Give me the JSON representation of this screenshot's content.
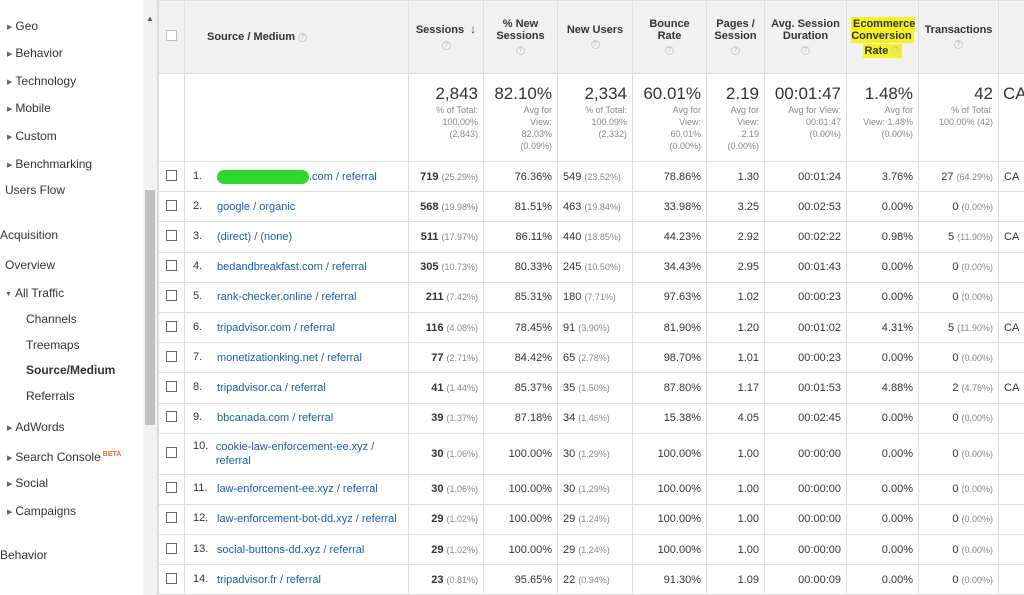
{
  "sidebar": {
    "geo": "Geo",
    "behavior_sub": "Behavior",
    "technology": "Technology",
    "mobile": "Mobile",
    "custom": "Custom",
    "benchmarking": "Benchmarking",
    "users_flow": "Users Flow",
    "acquisition": "Acquisition",
    "overview": "Overview",
    "all_traffic": "All Traffic",
    "channels": "Channels",
    "treemaps": "Treemaps",
    "source_medium": "Source/Medium",
    "referrals": "Referrals",
    "adwords": "AdWords",
    "search_console": "Search Console",
    "beta": "BETA",
    "social": "Social",
    "campaigns": "Campaigns",
    "behavior": "Behavior"
  },
  "columns": [
    {
      "label": "Source / Medium"
    },
    {
      "label": "Sessions"
    },
    {
      "label": "% New Sessions"
    },
    {
      "label": "New Users"
    },
    {
      "label": "Bounce Rate"
    },
    {
      "label": "Pages / Session"
    },
    {
      "label": "Avg. Session Duration"
    },
    {
      "label": "Ecommerce Conversion",
      "label_tail": "Rate"
    },
    {
      "label": "Transactions"
    }
  ],
  "highlight_color": "#f5f222",
  "link_color": "#1a5ea9",
  "totals": {
    "sessions": {
      "value": "2,843",
      "line1": "% of Total:",
      "line2": "100.00%",
      "line3": "(2,843)"
    },
    "pct_new": {
      "value": "82.10%",
      "line1": "Avg for",
      "line2": "View:",
      "line3": "82.03%",
      "line4": "(0.09%)"
    },
    "new_users": {
      "value": "2,334",
      "line1": "% of Total:",
      "line2": "100.09%",
      "line3": "(2,332)"
    },
    "bounce": {
      "value": "60.01%",
      "line1": "Avg for",
      "line2": "View:",
      "line3": "60.01%",
      "line4": "(0.00%)"
    },
    "pages": {
      "value": "2.19",
      "line1": "Avg for",
      "line2": "View:",
      "line3": "2.19",
      "line4": "(0.00%)"
    },
    "duration": {
      "value": "00:01:47",
      "line1": "Avg for View:",
      "line2": "00:01:47",
      "line3": "(0.00%)"
    },
    "conv": {
      "value": "1.48%",
      "line1": "Avg for",
      "line2": "View: 1.48%",
      "line3": "(0.00%)"
    },
    "transactions": {
      "value": "42",
      "line1": "% of Total:",
      "line2": "100.00% (42)"
    },
    "revenue_partial": "CA"
  },
  "rows": [
    {
      "idx": "1.",
      "source": ".com / referral",
      "redacted": true,
      "sessions": "719",
      "sessions_pct": "(25.29%)",
      "pct_new": "76.36%",
      "new_users": "549",
      "new_users_pct": "(23.52%)",
      "bounce": "78.86%",
      "pages": "1.30",
      "duration": "00:01:24",
      "conv": "3.76%",
      "transactions": "27",
      "transactions_pct": "(64.29%)",
      "revenue_partial": "CA"
    },
    {
      "idx": "2.",
      "source": "google / organic",
      "sessions": "568",
      "sessions_pct": "(19.98%)",
      "pct_new": "81.51%",
      "new_users": "463",
      "new_users_pct": "(19.84%)",
      "bounce": "33.98%",
      "pages": "3.25",
      "duration": "00:02:53",
      "conv": "0.00%",
      "transactions": "0",
      "transactions_pct": "(0.00%)",
      "revenue_partial": ""
    },
    {
      "idx": "3.",
      "source": "(direct) / (none)",
      "sessions": "511",
      "sessions_pct": "(17.97%)",
      "pct_new": "86.11%",
      "new_users": "440",
      "new_users_pct": "(18.85%)",
      "bounce": "44.23%",
      "pages": "2.92",
      "duration": "00:02:22",
      "conv": "0.98%",
      "transactions": "5",
      "transactions_pct": "(11.90%)",
      "revenue_partial": "CA"
    },
    {
      "idx": "4.",
      "source": "bedandbreakfast.com / referral",
      "sessions": "305",
      "sessions_pct": "(10.73%)",
      "pct_new": "80.33%",
      "new_users": "245",
      "new_users_pct": "(10.50%)",
      "bounce": "34.43%",
      "pages": "2.95",
      "duration": "00:01:43",
      "conv": "0.00%",
      "transactions": "0",
      "transactions_pct": "(0.00%)",
      "revenue_partial": ""
    },
    {
      "idx": "5.",
      "source": "rank-checker.online / referral",
      "sessions": "211",
      "sessions_pct": "(7.42%)",
      "pct_new": "85.31%",
      "new_users": "180",
      "new_users_pct": "(7.71%)",
      "bounce": "97.63%",
      "pages": "1.02",
      "duration": "00:00:23",
      "conv": "0.00%",
      "transactions": "0",
      "transactions_pct": "(0.00%)",
      "revenue_partial": ""
    },
    {
      "idx": "6.",
      "source": "tripadvisor.com / referral",
      "sessions": "116",
      "sessions_pct": "(4.08%)",
      "pct_new": "78.45%",
      "new_users": "91",
      "new_users_pct": "(3.90%)",
      "bounce": "81.90%",
      "pages": "1.20",
      "duration": "00:01:02",
      "conv": "4.31%",
      "transactions": "5",
      "transactions_pct": "(11.90%)",
      "revenue_partial": "CA"
    },
    {
      "idx": "7.",
      "source": "monetizationking.net / referral",
      "sessions": "77",
      "sessions_pct": "(2.71%)",
      "pct_new": "84.42%",
      "new_users": "65",
      "new_users_pct": "(2.78%)",
      "bounce": "98.70%",
      "pages": "1.01",
      "duration": "00:00:23",
      "conv": "0.00%",
      "transactions": "0",
      "transactions_pct": "(0.00%)",
      "revenue_partial": ""
    },
    {
      "idx": "8.",
      "source": "tripadvisor.ca / referral",
      "sessions": "41",
      "sessions_pct": "(1.44%)",
      "pct_new": "85.37%",
      "new_users": "35",
      "new_users_pct": "(1.50%)",
      "bounce": "87.80%",
      "pages": "1.17",
      "duration": "00:01:53",
      "conv": "4.88%",
      "transactions": "2",
      "transactions_pct": "(4.76%)",
      "revenue_partial": "CA"
    },
    {
      "idx": "9.",
      "source": "bbcanada.com / referral",
      "sessions": "39",
      "sessions_pct": "(1.37%)",
      "pct_new": "87.18%",
      "new_users": "34",
      "new_users_pct": "(1.46%)",
      "bounce": "15.38%",
      "pages": "4.05",
      "duration": "00:02:45",
      "conv": "0.00%",
      "transactions": "0",
      "transactions_pct": "(0.00%)",
      "revenue_partial": ""
    },
    {
      "idx": "10.",
      "source": "cookie-law-enforcement-ee.xyz / referral",
      "tall": true,
      "sessions": "30",
      "sessions_pct": "(1.06%)",
      "pct_new": "100.00%",
      "new_users": "30",
      "new_users_pct": "(1.29%)",
      "bounce": "100.00%",
      "pages": "1.00",
      "duration": "00:00:00",
      "conv": "0.00%",
      "transactions": "0",
      "transactions_pct": "(0.00%)",
      "revenue_partial": ""
    },
    {
      "idx": "11.",
      "source": "law-enforcement-ee.xyz / referral",
      "sessions": "30",
      "sessions_pct": "(1.06%)",
      "pct_new": "100.00%",
      "new_users": "30",
      "new_users_pct": "(1.29%)",
      "bounce": "100.00%",
      "pages": "1.00",
      "duration": "00:00:00",
      "conv": "0.00%",
      "transactions": "0",
      "transactions_pct": "(0.00%)",
      "revenue_partial": ""
    },
    {
      "idx": "12.",
      "source": "law-enforcement-bot-dd.xyz / referral",
      "sessions": "29",
      "sessions_pct": "(1.02%)",
      "pct_new": "100.00%",
      "new_users": "29",
      "new_users_pct": "(1.24%)",
      "bounce": "100.00%",
      "pages": "1.00",
      "duration": "00:00:00",
      "conv": "0.00%",
      "transactions": "0",
      "transactions_pct": "(0.00%)",
      "revenue_partial": ""
    },
    {
      "idx": "13.",
      "source": "social-buttons-dd.xyz / referral",
      "sessions": "29",
      "sessions_pct": "(1.02%)",
      "pct_new": "100.00%",
      "new_users": "29",
      "new_users_pct": "(1.24%)",
      "bounce": "100.00%",
      "pages": "1.00",
      "duration": "00:00:00",
      "conv": "0.00%",
      "transactions": "0",
      "transactions_pct": "(0.00%)",
      "revenue_partial": ""
    },
    {
      "idx": "14.",
      "source": "tripadvisor.fr / referral",
      "sessions": "23",
      "sessions_pct": "(0.81%)",
      "pct_new": "95.65%",
      "new_users": "22",
      "new_users_pct": "(0.94%)",
      "bounce": "91.30%",
      "pages": "1.09",
      "duration": "00:00:09",
      "conv": "0.00%",
      "transactions": "0",
      "transactions_pct": "(0.00%)",
      "revenue_partial": ""
    }
  ]
}
